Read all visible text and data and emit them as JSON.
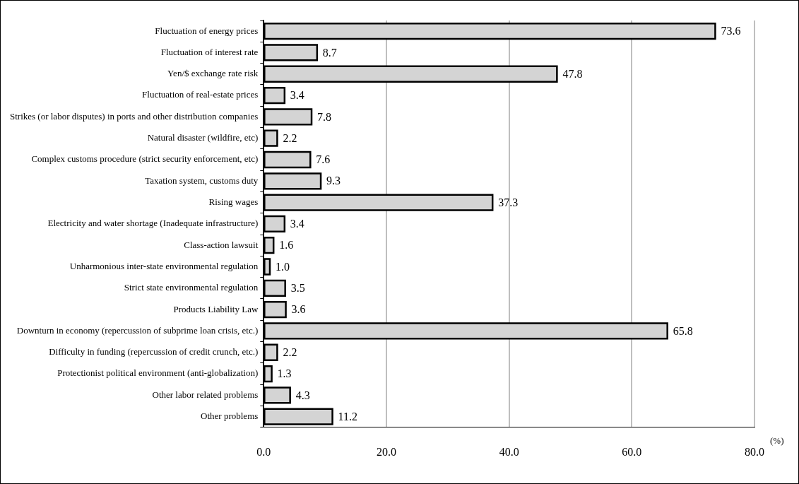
{
  "chart_data": {
    "type": "bar",
    "orientation": "horizontal",
    "xlabel": "(%)",
    "categories": [
      "Fluctuation of energy prices",
      "Fluctuation of interest rate",
      "Yen/$ exchange rate risk",
      "Fluctuation of real-estate prices",
      "Strikes (or labor disputes) in ports and other distribution companies",
      "Natural disaster (wildfire, etc)",
      "Complex customs procedure (strict security enforcement, etc)",
      "Taxation system, customs duty",
      "Rising wages",
      "Electricity and water shortage (Inadequate infrastructure)",
      "Class-action lawsuit",
      "Unharmonious inter-state environmental regulation",
      "Strict state environmental regulation",
      "Products Liability Law",
      "Downturn in economy (repercussion of subprime loan crisis, etc.)",
      "Difficulty in funding (repercussion of credit crunch, etc.)",
      "Protectionist political environment (anti-globalization)",
      "Other labor related problems",
      "Other problems"
    ],
    "values": [
      73.6,
      8.7,
      47.8,
      3.4,
      7.8,
      2.2,
      7.6,
      9.3,
      37.3,
      3.4,
      1.6,
      1.0,
      3.5,
      3.6,
      65.8,
      2.2,
      1.3,
      4.3,
      11.2
    ],
    "color": "#d4d4d4",
    "xlim": [
      0,
      80
    ],
    "xticks": [
      {
        "value": 0,
        "label": "0.0"
      },
      {
        "value": 20,
        "label": "20.0"
      },
      {
        "value": 40,
        "label": "40.0"
      },
      {
        "value": 60,
        "label": "60.0"
      },
      {
        "value": 80,
        "label": "80.0"
      }
    ],
    "grid": "x",
    "legend": false,
    "value_labels": [
      "73.6",
      "8.7",
      "47.8",
      "3.4",
      "7.8",
      "2.2",
      "7.6",
      "9.3",
      "37.3",
      "3.4",
      "1.6",
      "1.0",
      "3.5",
      "3.6",
      "65.8",
      "2.2",
      "1.3",
      "4.3",
      "11.2"
    ]
  }
}
